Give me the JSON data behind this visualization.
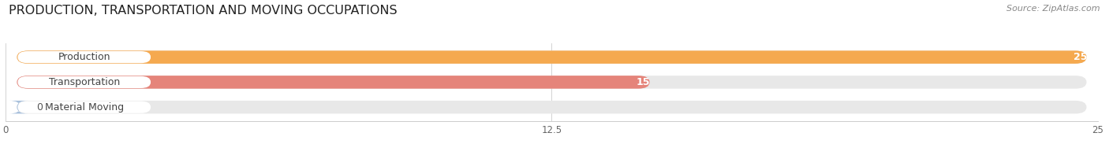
{
  "title": "PRODUCTION, TRANSPORTATION AND MOVING OCCUPATIONS",
  "source": "Source: ZipAtlas.com",
  "categories": [
    "Production",
    "Transportation",
    "Material Moving"
  ],
  "values": [
    25,
    15,
    0
  ],
  "bar_colors": [
    "#F5A94F",
    "#E5847A",
    "#A8C0DC"
  ],
  "bar_bg_color": "#E8E8E8",
  "xlim": [
    0,
    25
  ],
  "xticks": [
    0,
    12.5,
    25
  ],
  "title_fontsize": 11.5,
  "label_fontsize": 9,
  "value_fontsize": 9,
  "bar_height": 0.52,
  "background_color": "#FFFFFF",
  "value_label_color": "#FFFFFF",
  "zero_value_label_color": "#555555",
  "category_text_color": "#444444"
}
